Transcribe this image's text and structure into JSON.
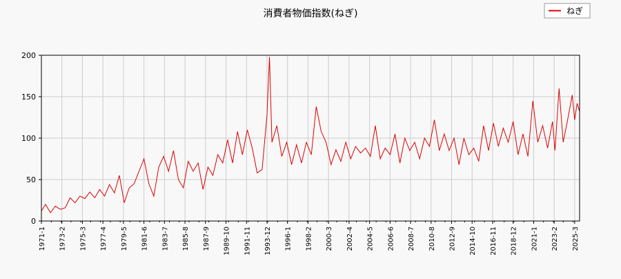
{
  "chart_data": {
    "type": "line",
    "title": "消費者物価指数(ねぎ)",
    "xlabel": "",
    "ylabel": "",
    "ylim": [
      0,
      200
    ],
    "yticks": [
      0,
      50,
      100,
      150,
      200
    ],
    "grid": true,
    "legend": "top-right",
    "x_range": [
      "1971-1",
      "2025-9"
    ],
    "x_tick_labels": [
      "1971-1",
      "1973-2",
      "1975-3",
      "1977-4",
      "1979-5",
      "1981-6",
      "1983-7",
      "1985-8",
      "1987-9",
      "1989-10",
      "1991-11",
      "1993-12",
      "1996-1",
      "1998-2",
      "2000-3",
      "2002-4",
      "2004-5",
      "2006-6",
      "2008-7",
      "2010-8",
      "2012-9",
      "2014-10",
      "2016-11",
      "2018-12",
      "2021-1",
      "2023-2",
      "2025-3"
    ],
    "series": [
      {
        "name": "ねぎ",
        "color": "#dd0000",
        "points": [
          [
            "1971-1",
            12
          ],
          [
            "1971-6",
            20
          ],
          [
            "1971-12",
            10
          ],
          [
            "1972-6",
            18
          ],
          [
            "1972-12",
            14
          ],
          [
            "1973-6",
            16
          ],
          [
            "1973-12",
            28
          ],
          [
            "1974-6",
            22
          ],
          [
            "1974-12",
            30
          ],
          [
            "1975-6",
            27
          ],
          [
            "1975-12",
            35
          ],
          [
            "1976-6",
            28
          ],
          [
            "1976-12",
            38
          ],
          [
            "1977-6",
            30
          ],
          [
            "1977-12",
            44
          ],
          [
            "1978-6",
            34
          ],
          [
            "1978-12",
            55
          ],
          [
            "1979-6",
            22
          ],
          [
            "1979-12",
            40
          ],
          [
            "1980-6",
            45
          ],
          [
            "1980-12",
            60
          ],
          [
            "1981-6",
            75
          ],
          [
            "1981-12",
            45
          ],
          [
            "1982-6",
            30
          ],
          [
            "1982-12",
            65
          ],
          [
            "1983-6",
            78
          ],
          [
            "1983-12",
            60
          ],
          [
            "1984-6",
            85
          ],
          [
            "1984-12",
            50
          ],
          [
            "1985-6",
            40
          ],
          [
            "1985-12",
            72
          ],
          [
            "1986-6",
            60
          ],
          [
            "1986-12",
            70
          ],
          [
            "1987-6",
            38
          ],
          [
            "1987-12",
            65
          ],
          [
            "1988-6",
            55
          ],
          [
            "1988-12",
            80
          ],
          [
            "1989-6",
            70
          ],
          [
            "1989-12",
            98
          ],
          [
            "1990-6",
            70
          ],
          [
            "1990-12",
            108
          ],
          [
            "1991-6",
            80
          ],
          [
            "1991-12",
            110
          ],
          [
            "1992-6",
            88
          ],
          [
            "1992-12",
            58
          ],
          [
            "1993-6",
            62
          ],
          [
            "1993-12",
            128
          ],
          [
            "1994-3",
            198
          ],
          [
            "1994-6",
            95
          ],
          [
            "1994-12",
            115
          ],
          [
            "1995-6",
            78
          ],
          [
            "1995-12",
            95
          ],
          [
            "1996-6",
            68
          ],
          [
            "1996-12",
            92
          ],
          [
            "1997-6",
            70
          ],
          [
            "1997-12",
            95
          ],
          [
            "1998-6",
            80
          ],
          [
            "1998-12",
            138
          ],
          [
            "1999-6",
            108
          ],
          [
            "1999-12",
            95
          ],
          [
            "2000-6",
            68
          ],
          [
            "2000-12",
            86
          ],
          [
            "2001-6",
            72
          ],
          [
            "2001-12",
            95
          ],
          [
            "2002-6",
            75
          ],
          [
            "2002-12",
            90
          ],
          [
            "2003-6",
            82
          ],
          [
            "2003-12",
            88
          ],
          [
            "2004-6",
            78
          ],
          [
            "2004-12",
            115
          ],
          [
            "2005-6",
            75
          ],
          [
            "2005-12",
            88
          ],
          [
            "2006-6",
            80
          ],
          [
            "2006-12",
            105
          ],
          [
            "2007-6",
            70
          ],
          [
            "2007-12",
            100
          ],
          [
            "2008-6",
            85
          ],
          [
            "2008-12",
            95
          ],
          [
            "2009-6",
            75
          ],
          [
            "2009-12",
            100
          ],
          [
            "2010-6",
            90
          ],
          [
            "2010-12",
            122
          ],
          [
            "2011-6",
            85
          ],
          [
            "2011-12",
            105
          ],
          [
            "2012-6",
            85
          ],
          [
            "2012-12",
            100
          ],
          [
            "2013-6",
            68
          ],
          [
            "2013-12",
            100
          ],
          [
            "2014-6",
            80
          ],
          [
            "2014-12",
            88
          ],
          [
            "2015-6",
            72
          ],
          [
            "2015-12",
            115
          ],
          [
            "2016-6",
            85
          ],
          [
            "2016-12",
            118
          ],
          [
            "2017-6",
            90
          ],
          [
            "2017-12",
            112
          ],
          [
            "2018-6",
            95
          ],
          [
            "2018-12",
            120
          ],
          [
            "2019-6",
            80
          ],
          [
            "2019-12",
            105
          ],
          [
            "2020-6",
            78
          ],
          [
            "2020-12",
            145
          ],
          [
            "2021-6",
            95
          ],
          [
            "2021-12",
            115
          ],
          [
            "2022-6",
            88
          ],
          [
            "2022-12",
            120
          ],
          [
            "2023-3",
            85
          ],
          [
            "2023-8",
            160
          ],
          [
            "2024-1",
            95
          ],
          [
            "2024-6",
            120
          ],
          [
            "2024-12",
            152
          ],
          [
            "2025-3",
            122
          ],
          [
            "2025-6",
            142
          ],
          [
            "2025-9",
            132
          ]
        ]
      }
    ]
  }
}
